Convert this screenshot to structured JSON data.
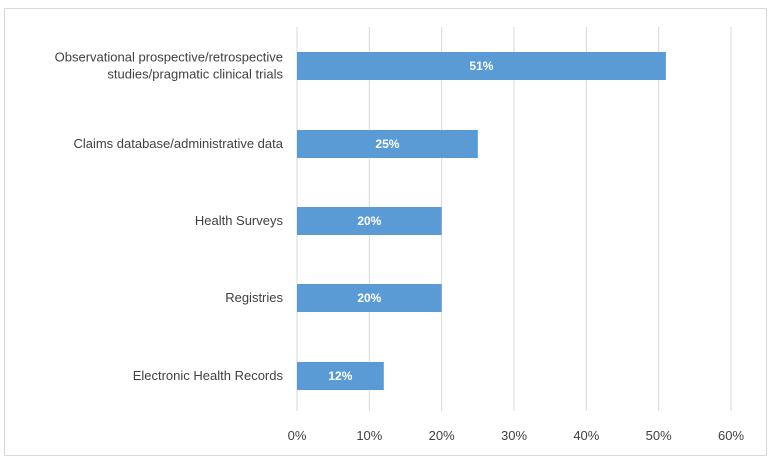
{
  "chart_data": {
    "type": "bar",
    "orientation": "horizontal",
    "categories": [
      [
        "Observational prospective/retrospective",
        "studies/pragmatic clinical trials"
      ],
      [
        "Claims database/administrative data"
      ],
      [
        "Health Surveys"
      ],
      [
        "Registries"
      ],
      [
        "Electronic Health Records"
      ]
    ],
    "values": [
      51,
      25,
      20,
      20,
      12
    ],
    "data_labels": [
      "51%",
      "25%",
      "20%",
      "20%",
      "12%"
    ],
    "x_ticks": [
      "0%",
      "10%",
      "20%",
      "30%",
      "40%",
      "50%",
      "60%"
    ],
    "xlim": [
      0,
      60
    ],
    "grid": "vertical",
    "legend": "none",
    "bar_color": "#5b9bd5",
    "gridline_color": "#d9d9d9",
    "title": "",
    "xlabel": "",
    "ylabel": ""
  }
}
